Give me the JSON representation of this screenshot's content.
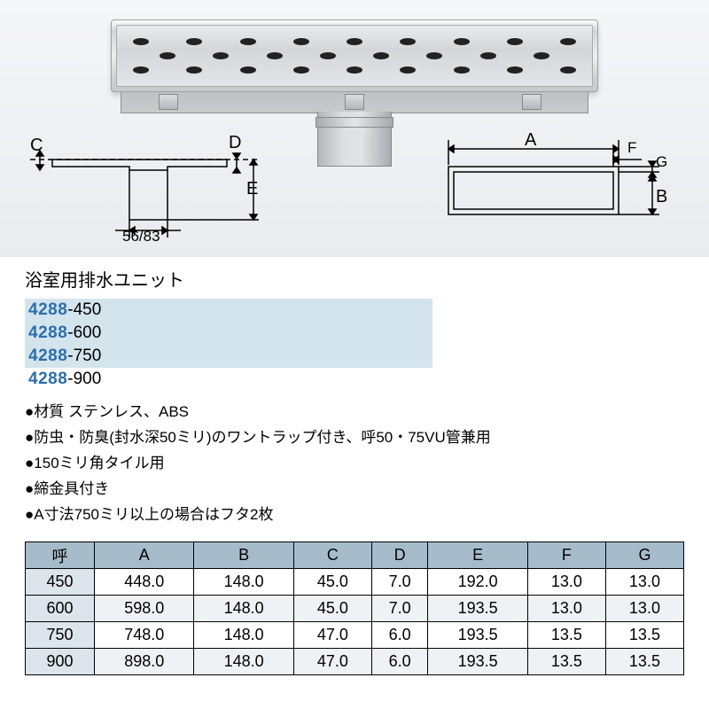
{
  "diagram": {
    "dims_label_C": "C",
    "dims_label_D": "D",
    "dims_label_E": "E",
    "outlet_sizes": "56/83",
    "rect_label_A": "A",
    "rect_label_B": "B",
    "rect_label_F": "F",
    "rect_label_G": "G"
  },
  "title": "浴室用排水ユニット",
  "codes": [
    {
      "main": "4288",
      "suffix": "-450",
      "shaded": true
    },
    {
      "main": "4288",
      "suffix": "-600",
      "shaded": true
    },
    {
      "main": "4288",
      "suffix": "-750",
      "shaded": true
    },
    {
      "main": "4288",
      "suffix": "-900",
      "shaded": false
    }
  ],
  "bullets": [
    "材質 ステンレス、ABS",
    "防虫・防臭(封水深50ミリ)のワントラップ付き、呼50・75VU管兼用",
    "150ミリ角タイル用",
    "締金具付き",
    "A寸法750ミリ以上の場合はフタ2枚"
  ],
  "spec_table": {
    "header": [
      "呼",
      "A",
      "B",
      "C",
      "D",
      "E",
      "F",
      "G"
    ],
    "rows": [
      {
        "call": "450",
        "cells": [
          "448.0",
          "148.0",
          "45.0",
          "7.0",
          "192.0",
          "13.0",
          "13.0"
        ]
      },
      {
        "call": "600",
        "cells": [
          "598.0",
          "148.0",
          "45.0",
          "7.0",
          "193.5",
          "13.0",
          "13.0"
        ]
      },
      {
        "call": "750",
        "cells": [
          "748.0",
          "148.0",
          "47.0",
          "6.0",
          "193.5",
          "13.5",
          "13.5"
        ]
      },
      {
        "call": "900",
        "cells": [
          "898.0",
          "148.0",
          "47.0",
          "6.0",
          "193.5",
          "13.5",
          "13.5"
        ]
      }
    ]
  }
}
